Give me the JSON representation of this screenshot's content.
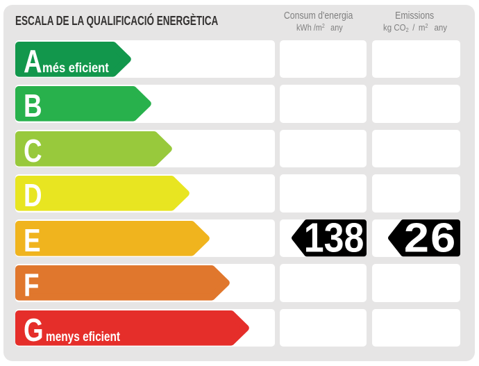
{
  "title": "ESCALA DE LA QUALIFICACIÓ ENERGÈTICA",
  "columns": [
    {
      "title": "Consum d'energia",
      "unit_pre": "kWh /m",
      "unit_sup": "2",
      "unit_post": "  any"
    },
    {
      "title": "Emissions",
      "unit_pre": "kg CO",
      "unit_sub": "2",
      "unit_mid": "  /  m",
      "unit_sup": "2",
      "unit_post": "  any"
    }
  ],
  "rows": [
    {
      "letter": "A",
      "label": "més eficient",
      "color": "#12974c",
      "arrow_width": 169
    },
    {
      "letter": "B",
      "label": "",
      "color": "#28b14c",
      "arrow_width": 198
    },
    {
      "letter": "C",
      "label": "",
      "color": "#98c93c",
      "arrow_width": 228
    },
    {
      "letter": "D",
      "label": "",
      "color": "#e8e521",
      "arrow_width": 253
    },
    {
      "letter": "E",
      "label": "",
      "color": "#f0b41e",
      "arrow_width": 282
    },
    {
      "letter": "F",
      "label": "",
      "color": "#e0772d",
      "arrow_width": 311
    },
    {
      "letter": "G",
      "label": "menys eficient",
      "color": "#e52e2a",
      "arrow_width": 339
    }
  ],
  "rating": {
    "letter": "E",
    "row_index": 4,
    "consumption_value": "138",
    "emissions_value": "26",
    "marker_color": "#000000"
  },
  "colors": {
    "panel_background": "#e6e5e5",
    "row_background": "#ffffff",
    "title_text": "#333130",
    "header_text": "#7f7f7f",
    "marker_text": "#ffffff"
  },
  "chart_data": {
    "type": "bar",
    "subtype": "energy-rating-scale",
    "title": "ESCALA DE LA QUALIFICACIÓ ENERGÈTICA",
    "categories": [
      "A",
      "B",
      "C",
      "D",
      "E",
      "F",
      "G"
    ],
    "category_labels": {
      "A": "més eficient",
      "G": "menys eficient"
    },
    "bar_colors": [
      "#12974c",
      "#28b14c",
      "#98c93c",
      "#e8e521",
      "#f0b41e",
      "#e0772d",
      "#e52e2a"
    ],
    "values": [
      169,
      198,
      228,
      253,
      282,
      311,
      339
    ],
    "value_unit": "px-bar-length (decorative scale, no numeric axis)",
    "rating": "E",
    "indicators": [
      {
        "column": "Consum d'energia",
        "unit": "kWh /m2 any",
        "value": 138,
        "row": "E"
      },
      {
        "column": "Emissions",
        "unit": "kg CO2 / m2 any",
        "value": 26,
        "row": "E"
      }
    ],
    "legend_position": "none",
    "grid": false
  }
}
